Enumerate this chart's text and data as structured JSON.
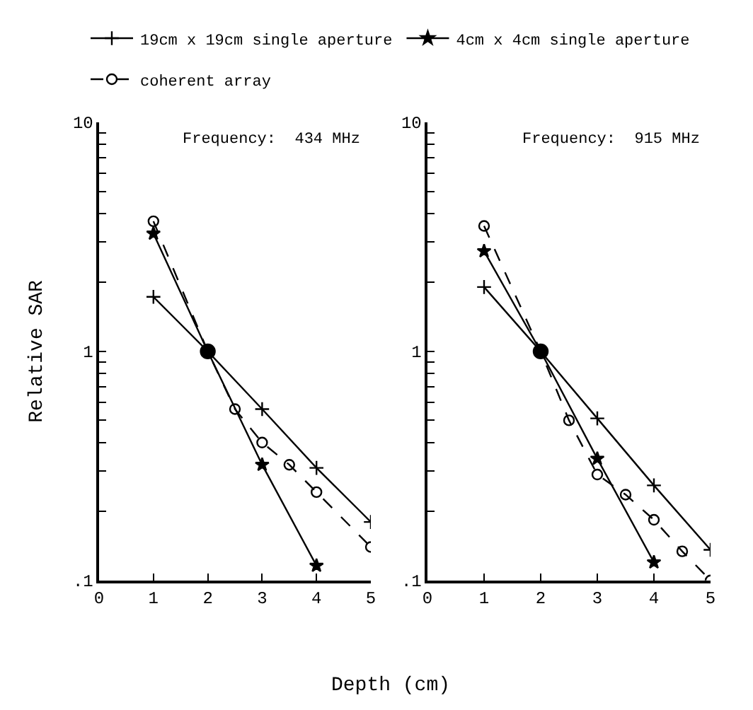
{
  "chart_data": [
    {
      "type": "line",
      "ylabel": "Relative SAR",
      "xlabel": "Depth (cm)",
      "annotations": [
        "Frequency:  434 MHz"
      ],
      "log": "y",
      "legend": "top",
      "xlim": [
        0,
        5
      ],
      "xticks": [
        0,
        1,
        2,
        3,
        4,
        5
      ],
      "ylim": [
        0.1,
        10
      ],
      "yticks": [
        {
          "value": 0.1,
          "label": ".1"
        },
        {
          "value": 0.2,
          "label": null
        },
        {
          "value": 0.3,
          "label": null
        },
        {
          "value": 0.4,
          "label": null
        },
        {
          "value": 0.5,
          "label": null
        },
        {
          "value": 0.6,
          "label": null
        },
        {
          "value": 0.7,
          "label": null
        },
        {
          "value": 0.8,
          "label": null
        },
        {
          "value": 0.9,
          "label": null
        },
        1,
        {
          "value": 2,
          "label": null
        },
        {
          "value": 3,
          "label": null
        },
        {
          "value": 4,
          "label": null
        },
        {
          "value": 5,
          "label": null
        },
        {
          "value": 6,
          "label": null
        },
        {
          "value": 7,
          "label": null
        },
        {
          "value": 8,
          "label": null
        },
        {
          "value": 9,
          "label": null
        },
        10
      ],
      "series": [
        {
          "name": "19cm x 19cm single aperture",
          "color": "#000000",
          "marker": "cross",
          "line_style": "solid",
          "x": [
            1,
            2,
            3,
            4,
            5
          ],
          "values": [
            1.73,
            1,
            0.56,
            0.31,
            0.18
          ]
        },
        {
          "name": "4cm x 4cm single aperture",
          "color": "#000000",
          "marker": "star",
          "line_style": "solid",
          "x": [
            1,
            2,
            3,
            4
          ],
          "values": [
            3.27,
            1,
            0.32,
            0.116
          ]
        },
        {
          "name": "coherent array",
          "color": "#000000",
          "marker": "circle",
          "line_style": "dashed",
          "x": [
            1,
            2,
            2.5,
            3,
            3.5,
            4,
            5
          ],
          "values": [
            3.7,
            1,
            0.56,
            0.4,
            0.32,
            0.243,
            0.14
          ]
        },
        {
          "type": "scatter",
          "color": "#000000",
          "marker": "circle",
          "x": [
            2
          ],
          "values": [
            1
          ]
        }
      ]
    },
    {
      "type": "line",
      "annotations": [
        "Frequency:  915 MHz"
      ],
      "log": "y",
      "xlim": [
        0,
        5
      ],
      "xticks": [
        0,
        1,
        2,
        3,
        4,
        5
      ],
      "ylim": [
        0.1,
        10
      ],
      "yticks": [
        {
          "value": 0.1,
          "label": ".1"
        },
        {
          "value": 0.2,
          "label": null
        },
        {
          "value": 0.3,
          "label": null
        },
        {
          "value": 0.4,
          "label": null
        },
        {
          "value": 0.5,
          "label": null
        },
        {
          "value": 0.6,
          "label": null
        },
        {
          "value": 0.7,
          "label": null
        },
        {
          "value": 0.8,
          "label": null
        },
        {
          "value": 0.9,
          "label": null
        },
        1,
        {
          "value": 2,
          "label": null
        },
        {
          "value": 3,
          "label": null
        },
        {
          "value": 4,
          "label": null
        },
        {
          "value": 5,
          "label": null
        },
        {
          "value": 6,
          "label": null
        },
        {
          "value": 7,
          "label": null
        },
        {
          "value": 8,
          "label": null
        },
        {
          "value": 9,
          "label": null
        },
        10
      ],
      "series": [
        {
          "name": "19cm x 19cm single aperture",
          "color": "#000000",
          "marker": "cross",
          "line_style": "solid",
          "x": [
            1,
            2,
            3,
            4,
            5
          ],
          "values": [
            1.91,
            1,
            0.51,
            0.26,
            0.136
          ]
        },
        {
          "name": "4cm x 4cm single aperture",
          "color": "#000000",
          "marker": "star",
          "line_style": "solid",
          "x": [
            1,
            2,
            3,
            4
          ],
          "values": [
            2.74,
            1,
            0.34,
            0.12
          ]
        },
        {
          "name": "coherent array",
          "color": "#000000",
          "marker": "circle",
          "line_style": "dashed",
          "x": [
            1,
            2,
            2.5,
            3,
            3.5,
            4,
            4.5,
            5
          ],
          "values": [
            3.53,
            1,
            0.5,
            0.29,
            0.237,
            0.184,
            0.134,
            0.1
          ]
        },
        {
          "type": "scatter",
          "color": "#000000",
          "marker": "circle",
          "x": [
            2
          ],
          "values": [
            1
          ]
        }
      ]
    }
  ]
}
